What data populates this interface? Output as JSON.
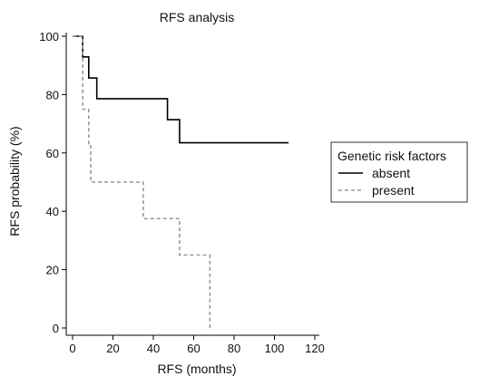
{
  "chart_data": {
    "type": "line",
    "title": "RFS analysis",
    "xlabel": "RFS (months)",
    "ylabel": "RFS probability (%)",
    "xlim": [
      0,
      120
    ],
    "ylim": [
      0,
      100
    ],
    "xticks": [
      0,
      20,
      40,
      60,
      80,
      100,
      120
    ],
    "yticks": [
      0,
      20,
      40,
      60,
      80,
      100
    ],
    "grid": false,
    "legend_title": "Genetic risk factors",
    "legend_position": "right",
    "series": [
      {
        "name": "absent",
        "color": "#000000",
        "dash": "solid",
        "x": [
          0,
          5,
          8,
          12,
          47,
          53,
          107
        ],
        "y": [
          100,
          92.9,
          85.7,
          78.6,
          71.4,
          63.5,
          63.5
        ]
      },
      {
        "name": "present",
        "color": "#999999",
        "dash": "dashed",
        "x": [
          0,
          5,
          8,
          9,
          35,
          53,
          68
        ],
        "y": [
          100,
          75,
          62.5,
          50,
          37.5,
          25,
          0
        ]
      }
    ]
  }
}
